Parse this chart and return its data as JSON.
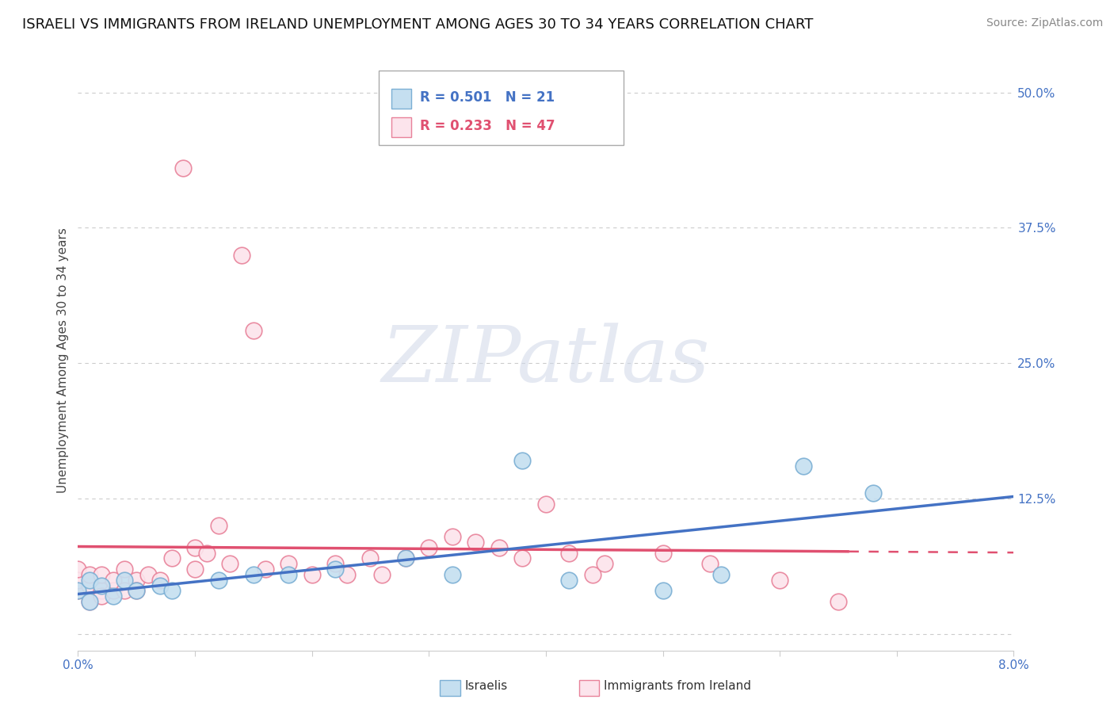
{
  "title": "ISRAELI VS IMMIGRANTS FROM IRELAND UNEMPLOYMENT AMONG AGES 30 TO 34 YEARS CORRELATION CHART",
  "source": "Source: ZipAtlas.com",
  "ylabel": "Unemployment Among Ages 30 to 34 years",
  "xlim": [
    0.0,
    0.08
  ],
  "ylim": [
    -0.015,
    0.52
  ],
  "xticks": [
    0.0,
    0.01,
    0.02,
    0.03,
    0.04,
    0.05,
    0.06,
    0.07,
    0.08
  ],
  "xticklabels": [
    "0.0%",
    "",
    "",
    "",
    "",
    "",
    "",
    "",
    "8.0%"
  ],
  "ytick_positions": [
    0.0,
    0.125,
    0.25,
    0.375,
    0.5
  ],
  "ytick_labels": [
    "",
    "12.5%",
    "25.0%",
    "37.5%",
    "50.0%"
  ],
  "israelis_x": [
    0.0,
    0.001,
    0.001,
    0.002,
    0.003,
    0.004,
    0.005,
    0.007,
    0.008,
    0.012,
    0.015,
    0.018,
    0.022,
    0.028,
    0.032,
    0.038,
    0.042,
    0.05,
    0.055,
    0.062,
    0.068
  ],
  "israelis_y": [
    0.04,
    0.05,
    0.03,
    0.045,
    0.035,
    0.05,
    0.04,
    0.045,
    0.04,
    0.05,
    0.055,
    0.055,
    0.06,
    0.07,
    0.055,
    0.16,
    0.05,
    0.04,
    0.055,
    0.155,
    0.13
  ],
  "ireland_x": [
    0.0,
    0.0,
    0.0,
    0.001,
    0.001,
    0.001,
    0.002,
    0.002,
    0.002,
    0.003,
    0.003,
    0.004,
    0.004,
    0.005,
    0.005,
    0.006,
    0.007,
    0.008,
    0.009,
    0.01,
    0.01,
    0.011,
    0.012,
    0.013,
    0.014,
    0.015,
    0.016,
    0.018,
    0.02,
    0.022,
    0.023,
    0.025,
    0.026,
    0.028,
    0.03,
    0.032,
    0.034,
    0.036,
    0.038,
    0.04,
    0.042,
    0.044,
    0.045,
    0.05,
    0.054,
    0.06,
    0.065
  ],
  "ireland_y": [
    0.04,
    0.05,
    0.06,
    0.045,
    0.03,
    0.055,
    0.04,
    0.055,
    0.035,
    0.04,
    0.05,
    0.04,
    0.06,
    0.05,
    0.04,
    0.055,
    0.05,
    0.07,
    0.43,
    0.06,
    0.08,
    0.075,
    0.1,
    0.065,
    0.35,
    0.28,
    0.06,
    0.065,
    0.055,
    0.065,
    0.055,
    0.07,
    0.055,
    0.07,
    0.08,
    0.09,
    0.085,
    0.08,
    0.07,
    0.12,
    0.075,
    0.055,
    0.065,
    0.075,
    0.065,
    0.05,
    0.03
  ],
  "isr_trend_color": "#4472c4",
  "ire_trend_color": "#e05070",
  "isr_scatter_fill": "#c5dff0",
  "isr_scatter_edge": "#7bafd4",
  "ire_scatter_fill": "#fce4ec",
  "ire_scatter_edge": "#e8829a",
  "grid_color": "#cccccc",
  "background_color": "#ffffff",
  "watermark_text": "ZIPatlas",
  "watermark_color": "#d0d8e8",
  "legend_blue_text": "R = 0.501   N = 21",
  "legend_pink_text": "R = 0.233   N = 47",
  "legend_blue_color": "#4472c4",
  "legend_pink_color": "#e05070",
  "bottom_label_isr": "Israelis",
  "bottom_label_ire": "Immigrants from Ireland",
  "title_fontsize": 13,
  "tick_fontsize": 11,
  "label_fontsize": 11,
  "source_fontsize": 10
}
